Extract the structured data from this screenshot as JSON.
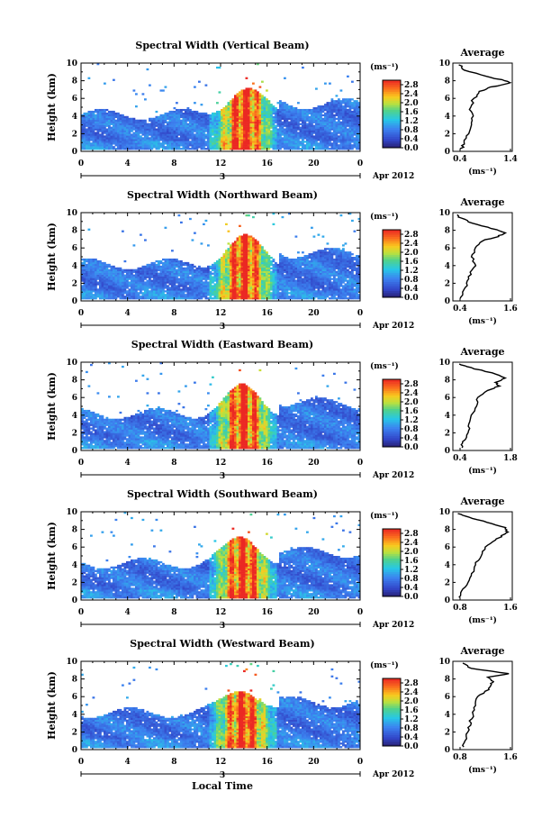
{
  "chart_data": [
    {
      "type": "heatmap",
      "title": "Spectral Width (Vertical Beam)",
      "ylabel": "Height (km)",
      "xticks": [
        "0",
        "4",
        "8",
        "12",
        "16",
        "20",
        "0"
      ],
      "yticks": [
        "0",
        "2",
        "4",
        "6",
        "8",
        "10"
      ],
      "xlim": [
        0,
        24
      ],
      "ylim": [
        0,
        10
      ],
      "date_label": "3",
      "date_suffix": "Apr 2012",
      "colorbar": {
        "unit": "(ms⁻¹)",
        "ticks": [
          "0.0",
          "0.4",
          "0.8",
          "1.2",
          "1.6",
          "2.0",
          "2.4",
          "2.8"
        ],
        "range": [
          0,
          3.0
        ]
      },
      "profile": {
        "title": "Average",
        "xlabel": "(ms⁻¹)",
        "xticks": [
          "0.4",
          "1.4"
        ],
        "xlim": [
          0.4,
          1.4
        ],
        "ylim": [
          0,
          10
        ],
        "heights": [
          0.3,
          1,
          2,
          3,
          4,
          5,
          6,
          6.8,
          7.3,
          7.7,
          8.0,
          8.5,
          9.2,
          9.8
        ],
        "values": [
          0.55,
          0.6,
          0.65,
          0.7,
          0.72,
          0.7,
          0.75,
          0.85,
          1.05,
          1.35,
          1.3,
          0.95,
          0.6,
          0.5
        ]
      }
    },
    {
      "type": "heatmap",
      "title": "Spectral Width (Northward Beam)",
      "ylabel": "Height (km)",
      "xticks": [
        "0",
        "4",
        "8",
        "12",
        "16",
        "20",
        "0"
      ],
      "yticks": [
        "0",
        "2",
        "4",
        "6",
        "8",
        "10"
      ],
      "xlim": [
        0,
        24
      ],
      "ylim": [
        0,
        10
      ],
      "date_label": "3",
      "date_suffix": "Apr 2012",
      "colorbar": {
        "unit": "(ms⁻¹)",
        "ticks": [
          "0.0",
          "0.4",
          "0.8",
          "1.2",
          "1.6",
          "2.0",
          "2.4",
          "2.8"
        ],
        "range": [
          0,
          3.0
        ]
      },
      "profile": {
        "title": "Average",
        "xlabel": "(ms⁻¹)",
        "xticks": [
          "0.4",
          "1.6"
        ],
        "xlim": [
          0.4,
          1.6
        ],
        "ylim": [
          0,
          10
        ],
        "heights": [
          0.3,
          1,
          2,
          3,
          4,
          5,
          6,
          6.8,
          7.3,
          7.7,
          8.2,
          8.8,
          9.4,
          9.8
        ],
        "values": [
          0.55,
          0.6,
          0.7,
          0.75,
          0.85,
          0.8,
          0.85,
          1.0,
          1.3,
          1.45,
          1.2,
          0.8,
          0.55,
          0.5
        ]
      }
    },
    {
      "type": "heatmap",
      "title": "Spectral Width (Eastward Beam)",
      "ylabel": "Height (km)",
      "xticks": [
        "0",
        "4",
        "8",
        "12",
        "16",
        "20",
        "0"
      ],
      "yticks": [
        "0",
        "2",
        "4",
        "6",
        "8",
        "10"
      ],
      "xlim": [
        0,
        24
      ],
      "ylim": [
        0,
        10
      ],
      "date_label": "3",
      "date_suffix": "Apr 2012",
      "colorbar": {
        "unit": "(ms⁻¹)",
        "ticks": [
          "0.0",
          "0.4",
          "0.8",
          "1.2",
          "1.6",
          "2.0",
          "2.4",
          "2.8"
        ],
        "range": [
          0,
          3.0
        ]
      },
      "profile": {
        "title": "Average",
        "xlabel": "(ms⁻¹)",
        "xticks": [
          "0.4",
          "1.8"
        ],
        "xlim": [
          0.4,
          1.8
        ],
        "ylim": [
          0,
          10
        ],
        "heights": [
          0.3,
          1,
          2,
          3,
          4,
          5,
          6,
          6.8,
          7.3,
          7.7,
          8.2,
          8.8,
          9.4,
          9.8
        ],
        "values": [
          0.6,
          0.65,
          0.75,
          0.8,
          0.85,
          0.95,
          1.0,
          1.2,
          1.5,
          1.4,
          1.65,
          1.3,
          0.8,
          0.55
        ]
      }
    },
    {
      "type": "heatmap",
      "title": "Spectral Width (Southward Beam)",
      "ylabel": "Height (km)",
      "xticks": [
        "0",
        "4",
        "8",
        "12",
        "16",
        "20",
        "0"
      ],
      "yticks": [
        "0",
        "2",
        "4",
        "6",
        "8",
        "10"
      ],
      "xlim": [
        0,
        24
      ],
      "ylim": [
        0,
        10
      ],
      "date_label": "3",
      "date_suffix": "Apr 2012",
      "colorbar": {
        "unit": "(ms⁻¹)",
        "ticks": [
          "0.0",
          "0.4",
          "0.8",
          "1.2",
          "1.6",
          "2.0",
          "2.4",
          "2.8"
        ],
        "range": [
          0,
          3.0
        ]
      },
      "profile": {
        "title": "Average",
        "xlabel": "(ms⁻¹)",
        "xticks": [
          "0.8",
          "1.6"
        ],
        "xlim": [
          0.4,
          1.6
        ],
        "ylim": [
          0,
          10
        ],
        "heights": [
          0.3,
          1,
          2,
          3,
          4,
          5,
          6,
          6.8,
          7.3,
          7.7,
          8.2,
          8.8,
          9.4,
          9.8
        ],
        "values": [
          0.55,
          0.6,
          0.7,
          0.8,
          0.85,
          0.95,
          1.05,
          1.25,
          1.4,
          1.5,
          1.45,
          1.1,
          0.7,
          0.5
        ]
      }
    },
    {
      "type": "heatmap",
      "title": "Spectral Width (Westward Beam)",
      "ylabel": "Height (km)",
      "xticks": [
        "0",
        "4",
        "8",
        "12",
        "16",
        "20",
        "0"
      ],
      "yticks": [
        "0",
        "2",
        "4",
        "6",
        "8",
        "10"
      ],
      "xlim": [
        0,
        24
      ],
      "ylim": [
        0,
        10
      ],
      "date_label": "3",
      "date_suffix": "Apr 2012",
      "xlabel": "Local Time",
      "colorbar": {
        "unit": "(ms⁻¹)",
        "ticks": [
          "0.0",
          "0.4",
          "0.8",
          "1.2",
          "1.6",
          "2.0",
          "2.4",
          "2.8"
        ],
        "range": [
          0,
          3.0
        ]
      },
      "profile": {
        "title": "Average",
        "xlabel": "(ms⁻¹)",
        "xticks": [
          "0.8",
          "1.6"
        ],
        "xlim": [
          0.4,
          1.6
        ],
        "ylim": [
          0,
          10
        ],
        "heights": [
          0.3,
          1,
          2,
          3,
          4,
          5,
          6,
          6.8,
          7.3,
          7.7,
          8.2,
          8.6,
          9.2,
          9.8
        ],
        "values": [
          0.6,
          0.65,
          0.7,
          0.75,
          0.8,
          0.85,
          0.9,
          1.1,
          1.15,
          1.2,
          1.1,
          1.55,
          0.75,
          0.6
        ]
      }
    }
  ]
}
